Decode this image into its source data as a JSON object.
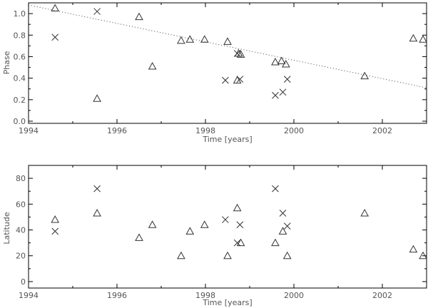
{
  "chart_data": [
    {
      "type": "scatter",
      "xlabel": "Time [years]",
      "ylabel": "Phase",
      "xlim": [
        1994,
        2003
      ],
      "ylim": [
        -0.02,
        1.1
      ],
      "x_ticks": [
        1994,
        1996,
        1998,
        2000,
        2002
      ],
      "y_ticks": [
        0.0,
        0.2,
        0.4,
        0.6,
        0.8,
        1.0
      ],
      "y_tick_labels": [
        "0.0",
        "0.2",
        "0.4",
        "0.6",
        "0.8",
        "1.0"
      ],
      "grid": false,
      "series": [
        {
          "marker": "triangle",
          "points": [
            [
              1994.6,
              1.05
            ],
            [
              1995.55,
              0.21
            ],
            [
              1996.5,
              0.97
            ],
            [
              1996.8,
              0.51
            ],
            [
              1997.45,
              0.75
            ],
            [
              1997.65,
              0.76
            ],
            [
              1997.98,
              0.76
            ],
            [
              1998.5,
              0.74
            ],
            [
              1998.72,
              0.38
            ],
            [
              1998.75,
              0.63
            ],
            [
              1998.8,
              0.62
            ],
            [
              1999.58,
              0.55
            ],
            [
              1999.72,
              0.56
            ],
            [
              1999.82,
              0.53
            ],
            [
              2001.6,
              0.42
            ],
            [
              2002.7,
              0.77
            ],
            [
              2002.92,
              0.76
            ]
          ]
        },
        {
          "marker": "cross",
          "points": [
            [
              1994.6,
              0.78
            ],
            [
              1995.55,
              1.02
            ],
            [
              1998.45,
              0.38
            ],
            [
              1998.72,
              0.63
            ],
            [
              1998.78,
              0.39
            ],
            [
              1999.58,
              0.24
            ],
            [
              1999.75,
              0.27
            ],
            [
              1999.85,
              0.39
            ]
          ]
        }
      ],
      "trend_line": {
        "x": [
          1994,
          2003
        ],
        "y": [
          1.08,
          0.31
        ],
        "style": "dotted"
      }
    },
    {
      "type": "scatter",
      "xlabel": "Time [years]",
      "ylabel": "Latitude",
      "xlim": [
        1994,
        2003
      ],
      "ylim": [
        -5,
        90
      ],
      "x_ticks": [
        1994,
        1996,
        1998,
        2000,
        2002
      ],
      "y_ticks": [
        0,
        20,
        40,
        60,
        80
      ],
      "y_tick_labels": [
        "0",
        "20",
        "40",
        "60",
        "80"
      ],
      "grid": false,
      "series": [
        {
          "marker": "triangle",
          "points": [
            [
              1994.6,
              48
            ],
            [
              1995.55,
              53
            ],
            [
              1996.5,
              34
            ],
            [
              1996.8,
              44
            ],
            [
              1997.45,
              20
            ],
            [
              1997.65,
              39
            ],
            [
              1997.98,
              44
            ],
            [
              1998.5,
              20
            ],
            [
              1998.72,
              57
            ],
            [
              1998.8,
              30
            ],
            [
              1999.58,
              30
            ],
            [
              1999.75,
              39
            ],
            [
              1999.85,
              20
            ],
            [
              2001.6,
              53
            ],
            [
              2002.7,
              25
            ],
            [
              2002.92,
              20
            ]
          ]
        },
        {
          "marker": "cross",
          "points": [
            [
              1994.6,
              39
            ],
            [
              1995.55,
              72
            ],
            [
              1998.45,
              48
            ],
            [
              1998.72,
              30
            ],
            [
              1998.78,
              44
            ],
            [
              1999.58,
              72
            ],
            [
              1999.75,
              53
            ],
            [
              1999.85,
              43
            ]
          ]
        }
      ]
    }
  ]
}
